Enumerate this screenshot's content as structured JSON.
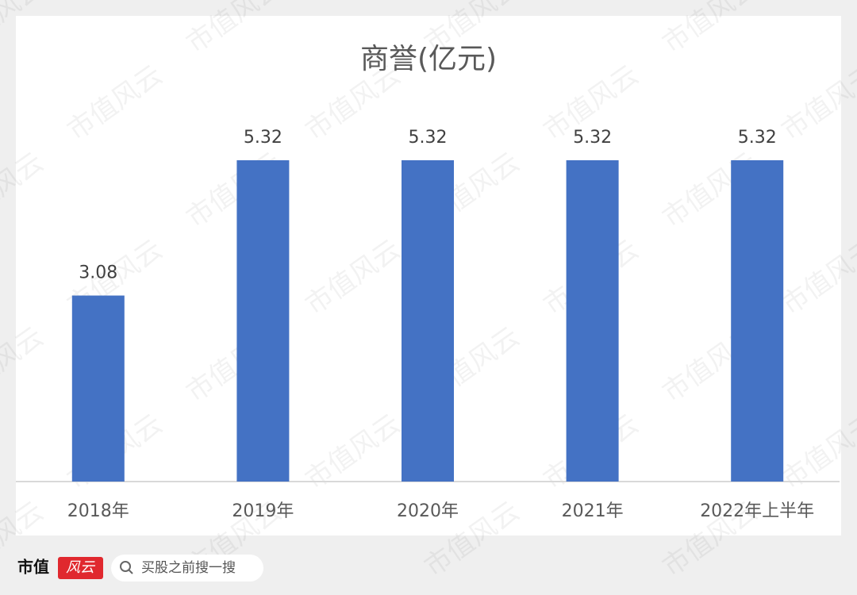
{
  "chart_data": {
    "type": "bar",
    "title": "商誉(亿元)",
    "categories": [
      "2018年",
      "2019年",
      "2020年",
      "2021年",
      "2022年上半年"
    ],
    "values": [
      3.08,
      5.32,
      5.32,
      5.32,
      5.32
    ],
    "color": "#4472c4"
  },
  "watermark": "市值风云",
  "footer": {
    "brand": "市值",
    "logo": "风云",
    "search": "买股之前搜一搜"
  }
}
